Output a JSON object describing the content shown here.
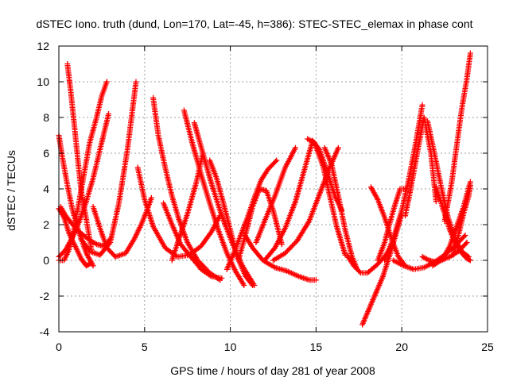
{
  "chart_data": {
    "type": "scatter",
    "title": "dSTEC Iono. truth (dund, Lon=170, Lat=-45, h=386): STEC-STEC_elemax in phase cont",
    "xlabel": "GPS time / hours of day 281 of year 2008",
    "ylabel": "dSTEC  / TECUs",
    "xlim": [
      0,
      25
    ],
    "ylim": [
      -4,
      12
    ],
    "xticks": [
      0,
      5,
      10,
      15,
      20,
      25
    ],
    "yticks": [
      -4,
      -2,
      0,
      2,
      4,
      6,
      8,
      10,
      12
    ],
    "grid": true,
    "marker": "+",
    "color": "#ff0000",
    "series": [
      {
        "x": [
          0.0,
          0.3,
          0.6,
          1.0,
          1.3,
          1.6,
          1.8
        ],
        "y": [
          2.9,
          2.4,
          1.5,
          0.7,
          0.1,
          -0.3,
          -0.2
        ]
      },
      {
        "x": [
          0.0,
          0.2,
          0.5,
          0.8,
          1.2,
          1.6,
          2.0
        ],
        "y": [
          7.0,
          5.8,
          4.2,
          2.8,
          1.5,
          0.4,
          -0.3
        ]
      },
      {
        "x": [
          0.0,
          0.3,
          0.6,
          0.9,
          1.2,
          1.5,
          1.8,
          2.2,
          2.5,
          2.8
        ],
        "y": [
          0.0,
          0.0,
          0.6,
          1.8,
          3.4,
          5.0,
          6.6,
          8.0,
          9.2,
          10.0
        ]
      },
      {
        "x": [
          0.0,
          0.4,
          0.8,
          1.2,
          1.6,
          2.0,
          2.4,
          2.9
        ],
        "y": [
          0.2,
          0.6,
          1.3,
          2.2,
          3.3,
          4.6,
          6.2,
          8.2
        ]
      },
      {
        "x": [
          0.1,
          0.4,
          0.8,
          1.2,
          1.7,
          2.2,
          2.6,
          3.0
        ],
        "y": [
          3.0,
          2.5,
          2.0,
          1.6,
          1.2,
          0.9,
          0.8,
          1.2
        ]
      },
      {
        "x": [
          0.5,
          0.7,
          0.9,
          1.1,
          1.3,
          1.6,
          1.9
        ],
        "y": [
          11.0,
          9.4,
          7.6,
          5.7,
          3.9,
          2.3,
          0.6
        ]
      },
      {
        "x": [
          1.3,
          1.8,
          2.4,
          3.0,
          3.5,
          4.0,
          4.5
        ],
        "y": [
          1.2,
          0.5,
          0.3,
          1.0,
          3.2,
          6.2,
          10.0
        ]
      },
      {
        "x": [
          2.0,
          2.4,
          2.8,
          3.3,
          3.9,
          4.4,
          4.8,
          5.1,
          5.4
        ],
        "y": [
          3.0,
          1.8,
          0.7,
          0.2,
          0.4,
          1.2,
          2.0,
          2.7,
          3.5
        ]
      },
      {
        "x": [
          4.6,
          5.0,
          5.5,
          6.2,
          6.9,
          7.6,
          8.3,
          8.9,
          9.4
        ],
        "y": [
          5.2,
          3.4,
          1.9,
          0.7,
          0.2,
          0.3,
          0.8,
          1.6,
          2.5
        ]
      },
      {
        "x": [
          5.5,
          5.8,
          6.2,
          6.6,
          7.0,
          7.5,
          8.1,
          8.8,
          9.4
        ],
        "y": [
          9.1,
          7.0,
          5.2,
          3.6,
          2.3,
          1.0,
          0.0,
          -0.7,
          -1.1
        ]
      },
      {
        "x": [
          6.1,
          6.6,
          7.1,
          7.7,
          8.3,
          8.9,
          9.5
        ],
        "y": [
          3.2,
          2.0,
          0.9,
          0.2,
          -0.5,
          -0.9,
          -1.0
        ]
      },
      {
        "x": [
          6.6,
          7.0,
          7.5,
          8.0,
          8.4
        ],
        "y": [
          0.0,
          1.2,
          2.6,
          4.3,
          6.0
        ]
      },
      {
        "x": [
          7.3,
          7.8,
          8.3,
          8.8,
          9.3,
          9.8,
          10.3,
          10.8
        ],
        "y": [
          8.4,
          6.5,
          4.8,
          3.2,
          1.7,
          0.4,
          -0.6,
          -1.4
        ]
      },
      {
        "x": [
          7.9,
          8.4,
          8.9,
          9.5,
          10.1,
          10.7,
          11.4
        ],
        "y": [
          7.7,
          6.0,
          4.3,
          2.5,
          1.0,
          -0.3,
          -1.4
        ]
      },
      {
        "x": [
          8.8,
          9.2,
          9.6,
          10.0,
          10.4,
          10.9,
          11.3
        ],
        "y": [
          5.6,
          4.6,
          3.2,
          1.7,
          0.2,
          -0.9,
          -1.4
        ]
      },
      {
        "x": [
          9.8,
          10.2,
          10.6,
          11.0,
          11.4,
          11.8,
          12.2,
          12.7
        ],
        "y": [
          -0.5,
          0.4,
          1.4,
          2.4,
          3.5,
          4.5,
          5.1,
          5.6
        ]
      },
      {
        "x": [
          10.5,
          10.9,
          11.3,
          11.7,
          12.1,
          12.5,
          13.0
        ],
        "y": [
          0.1,
          1.5,
          3.0,
          4.0,
          3.9,
          2.8,
          0.9
        ]
      },
      {
        "x": [
          10.8,
          11.3,
          11.9,
          12.6,
          13.3,
          14.0,
          14.6,
          15.0
        ],
        "y": [
          1.5,
          0.7,
          0.0,
          -0.4,
          -0.6,
          -0.9,
          -1.1,
          -1.1
        ]
      },
      {
        "x": [
          11.5,
          12.0,
          12.6,
          13.2,
          13.8
        ],
        "y": [
          1.0,
          2.2,
          3.6,
          5.2,
          6.3
        ]
      },
      {
        "x": [
          12.0,
          12.6,
          13.2,
          13.8,
          14.3,
          14.8,
          15.2,
          15.7,
          16.1,
          16.5
        ],
        "y": [
          0.0,
          0.7,
          1.8,
          3.3,
          5.0,
          6.7,
          6.2,
          4.8,
          3.6,
          2.8
        ]
      },
      {
        "x": [
          12.5,
          13.2,
          13.9,
          14.6,
          15.2,
          15.8,
          16.3
        ],
        "y": [
          0.0,
          0.4,
          1.1,
          2.2,
          3.7,
          5.2,
          6.3
        ]
      },
      {
        "x": [
          14.5,
          14.9,
          15.4,
          15.8,
          16.2,
          16.7
        ],
        "y": [
          6.8,
          6.6,
          5.3,
          3.6,
          1.9,
          0.3
        ]
      },
      {
        "x": [
          15.5,
          15.9,
          16.3,
          16.7,
          17.1,
          17.4
        ],
        "y": [
          6.3,
          5.4,
          3.6,
          1.7,
          0.2,
          -0.5
        ]
      },
      {
        "x": [
          16.8,
          17.2,
          17.6,
          18.0,
          18.5,
          19.0,
          19.5
        ],
        "y": [
          0.3,
          -0.3,
          -0.7,
          -0.7,
          -0.3,
          0.2,
          1.0
        ]
      },
      {
        "x": [
          17.7,
          18.1,
          18.5,
          18.9,
          19.3,
          19.7,
          20.0
        ],
        "y": [
          -3.6,
          -2.7,
          -1.8,
          -0.9,
          0.3,
          1.6,
          2.6
        ]
      },
      {
        "x": [
          18.2,
          18.6,
          19.0,
          19.4,
          19.8,
          20.2
        ],
        "y": [
          4.1,
          3.4,
          2.4,
          1.2,
          0.2,
          -0.3
        ]
      },
      {
        "x": [
          18.6,
          19.0,
          19.3,
          19.6,
          19.9,
          20.2
        ],
        "y": [
          0.0,
          1.0,
          2.1,
          3.1,
          4.0,
          4.0
        ]
      },
      {
        "x": [
          19.0,
          19.5,
          20.0,
          20.4,
          20.8,
          21.2
        ],
        "y": [
          0.0,
          1.2,
          2.8,
          4.5,
          6.5,
          8.7
        ]
      },
      {
        "x": [
          19.5,
          20.1,
          20.7,
          21.3,
          21.9,
          22.5,
          23.1,
          23.7
        ],
        "y": [
          0.0,
          -0.3,
          -0.5,
          -0.4,
          -0.1,
          0.3,
          0.8,
          1.4
        ]
      },
      {
        "x": [
          20.2,
          20.5,
          20.9,
          21.3,
          21.7,
          22.0
        ],
        "y": [
          2.5,
          3.9,
          6.0,
          8.0,
          6.0,
          3.3
        ]
      },
      {
        "x": [
          21.2,
          21.6,
          22.0,
          22.4,
          22.8,
          23.2,
          23.6,
          24.0
        ],
        "y": [
          0.2,
          0.0,
          -0.1,
          0.1,
          0.8,
          1.9,
          3.0,
          4.4
        ]
      },
      {
        "x": [
          21.5,
          21.9,
          22.3,
          22.7,
          23.1,
          23.5,
          23.9
        ],
        "y": [
          7.8,
          6.0,
          4.1,
          2.4,
          1.2,
          0.5,
          0.2
        ]
      },
      {
        "x": [
          22.0,
          22.4,
          22.8,
          23.2,
          23.5,
          23.8,
          24.0
        ],
        "y": [
          4.1,
          2.9,
          1.7,
          0.8,
          0.4,
          0.1,
          0.0
        ]
      },
      {
        "x": [
          22.5,
          22.9,
          23.2,
          23.5,
          23.8,
          24.0
        ],
        "y": [
          2.2,
          4.3,
          6.4,
          8.5,
          10.2,
          11.6
        ]
      },
      {
        "x": [
          23.0,
          23.3,
          23.6,
          23.9,
          24.0
        ],
        "y": [
          0.3,
          1.4,
          2.6,
          3.6,
          4.2
        ]
      },
      {
        "x": [
          21.8,
          22.3,
          22.8,
          23.3,
          23.8
        ],
        "y": [
          -0.3,
          0.0,
          0.2,
          0.5,
          1.0
        ]
      }
    ]
  }
}
